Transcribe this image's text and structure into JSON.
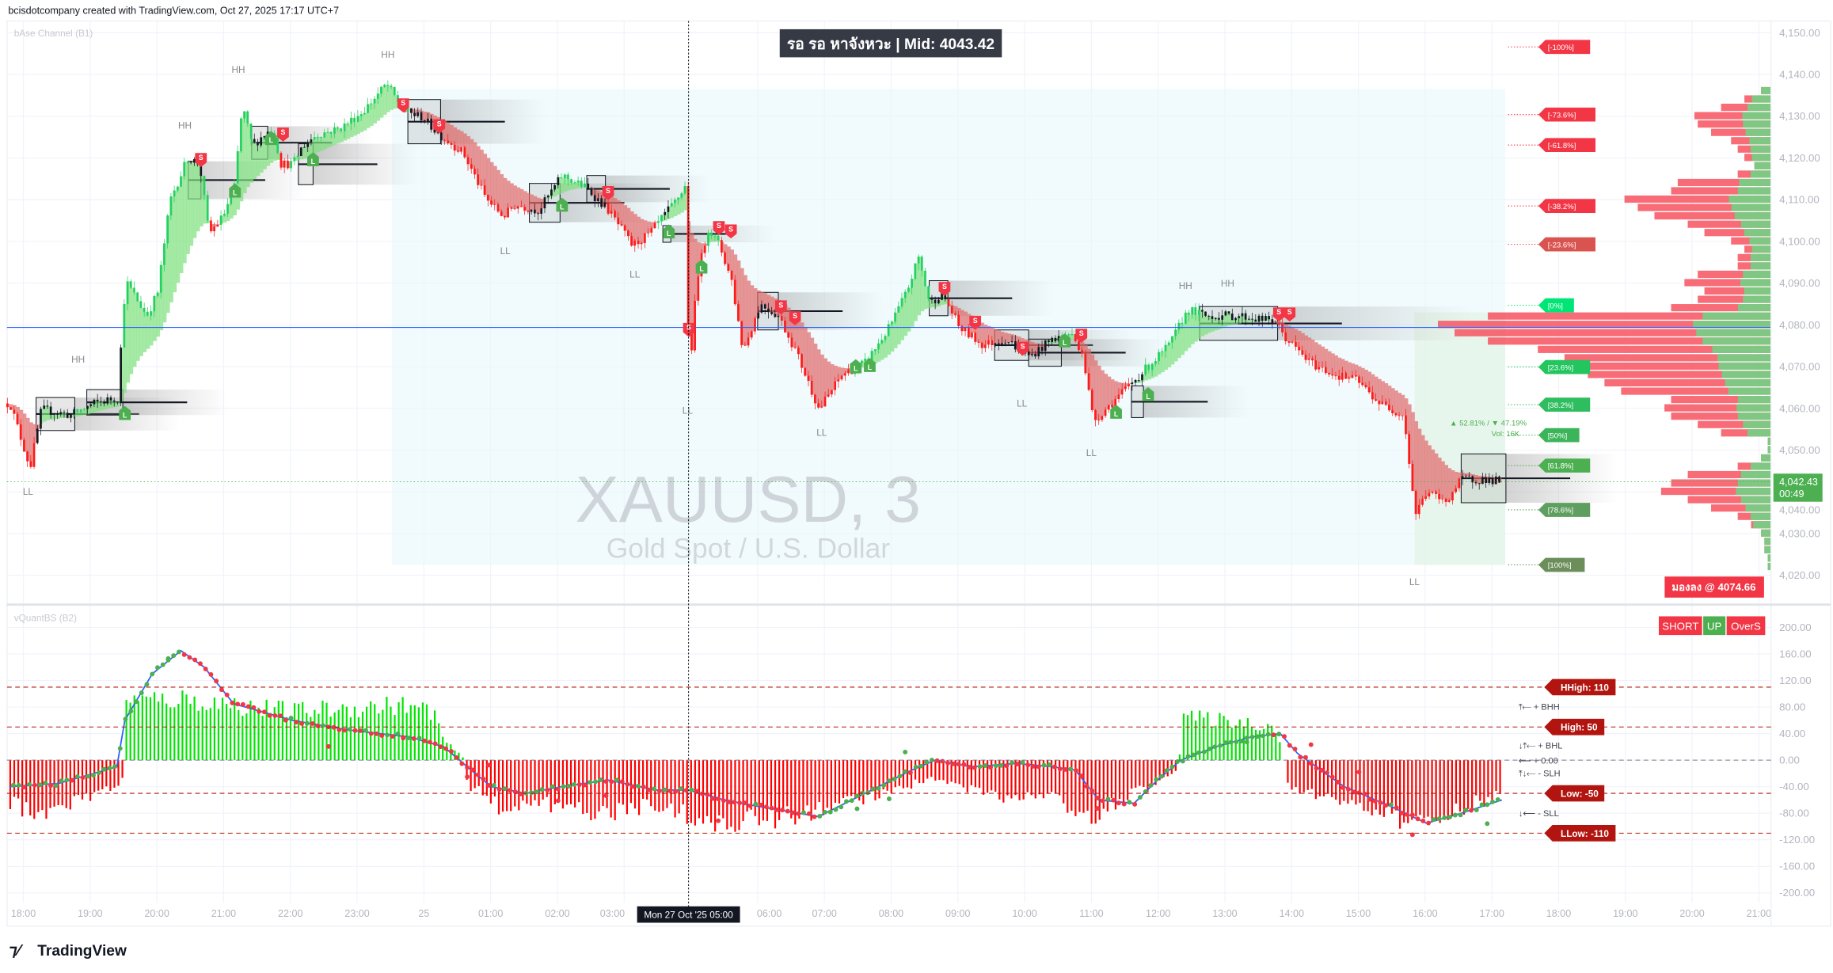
{
  "header": {
    "attribution": "bcisdotcompany created with TradingView.com, Oct 27, 2025 17:17 UTC+7"
  },
  "main_pane": {
    "indicator_label": "bAse Channel (B1)",
    "status_box": "รอ รอ หาจังหวะ | Mid: 4043.42",
    "watermark_symbol": "XAUUSD, 3",
    "watermark_name": "Gold Spot / U.S. Dollar",
    "ratio_text": "▲ 52.81% / ▼ 47.19%",
    "volume_text": "Vol: 16K",
    "current_price": "4,042.43",
    "countdown": "00:49",
    "bias_box": "มองลง @ 4074.66"
  },
  "indicator_pane": {
    "label": "vQuantBS (B2)",
    "badges": [
      {
        "text": "SHORT",
        "color": "#f23645"
      },
      {
        "text": "UP",
        "color": "#4caf50"
      },
      {
        "text": "OverS",
        "color": "#f23645"
      }
    ],
    "levels": [
      {
        "text": "HHigh: 110",
        "value": 110
      },
      {
        "text": "High: 50",
        "value": 50
      },
      {
        "text": "Low: -50",
        "value": -50
      },
      {
        "text": "LLow: -110",
        "value": -110
      }
    ],
    "notes": [
      {
        "text": "⤒⟵ + BHH",
        "value": 81
      },
      {
        "text": "↓⤒⟵ + BHL",
        "value": 23
      },
      {
        "text": "⟵ + 0.00",
        "value": 0
      },
      {
        "text": "⤒↓⟵ - SLH",
        "value": -19
      },
      {
        "text": "↓⟵ - SLL",
        "value": -79
      }
    ]
  },
  "crosshair": {
    "label": "Mon 27 Oct '25   05:00",
    "hour_index": 9.97
  },
  "branding": {
    "logo_text": "TradingView"
  },
  "colors": {
    "up": "#22d160",
    "down": "#ff1a1a",
    "fib_neg": "#f23645",
    "fib_pos": "#22c55e",
    "level": "#b2150f",
    "blue_line": "#2962ff"
  },
  "chart_data": [
    {
      "type": "candlestick",
      "title": "XAUUSD, 3",
      "ylim": [
        4020,
        4150
      ],
      "y_ticks": [
        4150,
        4140,
        4130,
        4120,
        4110,
        4100,
        4090,
        4080,
        4070,
        4060,
        4050,
        4040,
        4030,
        4020
      ],
      "x_tick_labels": [
        "18:00",
        "19:00",
        "20:00",
        "21:00",
        "22:00",
        "23:00",
        "25",
        "01:00",
        "02:00",
        "03:00",
        "06:00",
        "07:00",
        "08:00",
        "09:00",
        "10:00",
        "11:00",
        "12:00",
        "13:00",
        "14:00",
        "15:00",
        "16:00",
        "17:00",
        "18:00",
        "19:00",
        "20:00",
        "21:00"
      ],
      "grid": true,
      "close_path": [
        [
          -0.21,
          4061.2
        ],
        [
          0.09,
          4045.8
        ],
        [
          0.26,
          4059.8
        ],
        [
          0.7,
          4058.4
        ],
        [
          1.05,
          4061.2
        ],
        [
          1.4,
          4062.6
        ],
        [
          1.52,
          4090.6
        ],
        [
          1.84,
          4082.2
        ],
        [
          2.0,
          4087.8
        ],
        [
          2.19,
          4110
        ],
        [
          2.45,
          4120
        ],
        [
          2.63,
          4118.6
        ],
        [
          2.77,
          4101.8
        ],
        [
          2.98,
          4106
        ],
        [
          3.15,
          4113
        ],
        [
          3.27,
          4132.6
        ],
        [
          3.42,
          4122.8
        ],
        [
          3.59,
          4125.6
        ],
        [
          3.73,
          4127
        ],
        [
          3.85,
          4118.6
        ],
        [
          4.03,
          4118.6
        ],
        [
          4.17,
          4122.8
        ],
        [
          4.38,
          4125.6
        ],
        [
          4.73,
          4127
        ],
        [
          5.08,
          4131.2
        ],
        [
          5.43,
          4137.7
        ],
        [
          5.69,
          4131.2
        ],
        [
          5.96,
          4129.8
        ],
        [
          6.22,
          4125.6
        ],
        [
          6.57,
          4121.4
        ],
        [
          6.92,
          4110.2
        ],
        [
          7.18,
          4106
        ],
        [
          7.36,
          4108.8
        ],
        [
          7.71,
          4107.4
        ],
        [
          8.06,
          4115.8
        ],
        [
          8.41,
          4113
        ],
        [
          8.76,
          4107.4
        ],
        [
          9.11,
          4099
        ],
        [
          9.37,
          4101.8
        ],
        [
          9.72,
          4108.8
        ],
        [
          9.9,
          4113
        ],
        [
          9.97,
          4065.4
        ],
        [
          10.07,
          4090.6
        ],
        [
          10.25,
          4103.2
        ],
        [
          10.42,
          4099
        ],
        [
          10.6,
          4090.6
        ],
        [
          10.77,
          4073.8
        ],
        [
          11.03,
          4085
        ],
        [
          11.3,
          4082.2
        ],
        [
          11.56,
          4073.8
        ],
        [
          11.91,
          4059.8
        ],
        [
          12.26,
          4068.2
        ],
        [
          12.61,
          4071
        ],
        [
          12.96,
          4079.4
        ],
        [
          13.22,
          4087.8
        ],
        [
          13.4,
          4096.2
        ],
        [
          13.57,
          4085
        ],
        [
          13.75,
          4087.8
        ],
        [
          14.01,
          4079.4
        ],
        [
          14.36,
          4075.2
        ],
        [
          14.71,
          4076.6
        ],
        [
          15.06,
          4072.4
        ],
        [
          15.41,
          4076.6
        ],
        [
          15.67,
          4078
        ],
        [
          15.85,
          4073.8
        ],
        [
          16.02,
          4057
        ],
        [
          16.29,
          4061.2
        ],
        [
          16.55,
          4065.4
        ],
        [
          16.9,
          4071
        ],
        [
          17.16,
          4075.2
        ],
        [
          17.43,
          4083.6
        ],
        [
          17.69,
          4082.2
        ],
        [
          18.21,
          4082.2
        ],
        [
          18.74,
          4080.8
        ],
        [
          18.91,
          4076.6
        ],
        [
          19.26,
          4071
        ],
        [
          19.61,
          4068.2
        ],
        [
          19.96,
          4066.8
        ],
        [
          20.31,
          4061.2
        ],
        [
          20.67,
          4058.4
        ],
        [
          20.84,
          4034.6
        ],
        [
          21.02,
          4040.2
        ],
        [
          21.28,
          4037.4
        ],
        [
          21.54,
          4043
        ],
        [
          21.89,
          4043
        ],
        [
          22.15,
          4042.43
        ]
      ],
      "blue_line_price": 4079.4,
      "current_price": 4042.43,
      "signals_short": [
        [
          2.66,
          4119.5
        ],
        [
          3.89,
          4125.6
        ],
        [
          5.69,
          4132.6
        ],
        [
          6.23,
          4127.6
        ],
        [
          8.76,
          4111.6
        ],
        [
          10.42,
          4103.2
        ],
        [
          10.6,
          4102.4
        ],
        [
          9.97,
          4078.8
        ],
        [
          11.35,
          4084.2
        ],
        [
          11.56,
          4081.6
        ],
        [
          13.8,
          4088.6
        ],
        [
          14.26,
          4080.5
        ],
        [
          14.97,
          4074.3
        ],
        [
          15.85,
          4077.4
        ],
        [
          18.81,
          4082.5
        ],
        [
          18.97,
          4082.5
        ]
      ],
      "signals_long": [
        [
          1.52,
          4058.9
        ],
        [
          3.17,
          4112.2
        ],
        [
          3.71,
          4124.8
        ],
        [
          4.34,
          4119.7
        ],
        [
          8.07,
          4108.8
        ],
        [
          9.67,
          4102.4
        ],
        [
          10.16,
          4094
        ],
        [
          12.47,
          4070.1
        ],
        [
          12.68,
          4070.4
        ],
        [
          15.6,
          4076.3
        ],
        [
          16.37,
          4059.2
        ],
        [
          16.85,
          4063.4
        ]
      ],
      "signal_text": {
        "short": "S",
        "long": "L"
      },
      "swing_labels": [
        [
          "HH",
          0.82,
          4071
        ],
        [
          "HH",
          2.42,
          4127
        ],
        [
          "HH",
          3.22,
          4140.4
        ],
        [
          "HH",
          5.46,
          4144
        ],
        [
          "HH",
          17.41,
          4088.6
        ],
        [
          "HH",
          18.04,
          4089.2
        ],
        [
          "LL",
          0.07,
          4039.3
        ],
        [
          "LL",
          7.22,
          4097
        ],
        [
          "LL",
          9.16,
          4091.4
        ],
        [
          "LL",
          9.95,
          4058.7
        ],
        [
          "LL",
          11.96,
          4053.4
        ],
        [
          "LL",
          14.96,
          4060.4
        ],
        [
          "LL",
          16.0,
          4048.6
        ],
        [
          "LL",
          20.84,
          4017.7
        ]
      ],
      "zones": [
        [
          0.19,
          4062.6,
          0.77,
          4054.7
        ],
        [
          0.95,
          4064.5,
          1.49,
          4058.4
        ],
        [
          2.47,
          4119.2,
          2.66,
          4110.2
        ],
        [
          3.42,
          4127.6,
          3.66,
          4119.7
        ],
        [
          4.12,
          4123.4,
          4.34,
          4113.6
        ],
        [
          5.76,
          4134.0,
          6.25,
          4123.4
        ],
        [
          7.58,
          4113.9,
          8.04,
          4104.6
        ],
        [
          8.44,
          4115.8,
          8.72,
          4109.4
        ],
        [
          9.58,
          4103.8,
          9.7,
          4099.8
        ],
        [
          11.0,
          4087.8,
          11.31,
          4078.8
        ],
        [
          13.57,
          4090.6,
          13.85,
          4082.2
        ],
        [
          14.55,
          4078.8,
          15.06,
          4071.5
        ],
        [
          15.06,
          4076.6,
          15.55,
          4070.1
        ],
        [
          16.6,
          4065.4,
          16.78,
          4057.8
        ],
        [
          17.62,
          4084.4,
          18.79,
          4076.3
        ],
        [
          21.54,
          4049.1,
          22.21,
          4037.4
        ]
      ],
      "range_box": [
        5.52,
        4136.5,
        22.2,
        4022.5
      ],
      "range_box_green_from": 20.84,
      "fib_levels": [
        [
          "[-100%]",
          4146.6
        ],
        [
          "[-73.6%]",
          4130.4
        ],
        [
          "[-61.8%]",
          4123.1
        ],
        [
          "[-38.2%]",
          4108.5
        ],
        [
          "[-23.6%]",
          4099.3
        ],
        [
          "[0%]",
          4084.7
        ],
        [
          "[23.6%]",
          4069.9
        ],
        [
          "[38.2%]",
          4060.9
        ],
        [
          "[50%]",
          4053.6
        ],
        [
          "[61.8%]",
          4046.3
        ],
        [
          "[78.6%]",
          4035.7
        ],
        [
          "[100%]",
          4022.5
        ]
      ],
      "volume_profile": {
        "prices": [
          4022,
          4024,
          4026,
          4028,
          4030,
          4032,
          4034,
          4036,
          4038,
          4040,
          4042,
          4044,
          4046,
          4048,
          4050,
          4052,
          4054,
          4056,
          4058,
          4060,
          4062,
          4064,
          4066,
          4068,
          4070,
          4072,
          4074,
          4076,
          4078,
          4080,
          4082,
          4084,
          4086,
          4088,
          4090,
          4092,
          4094,
          4096,
          4098,
          4100,
          4102,
          4104,
          4106,
          4108,
          4110,
          4112,
          4114,
          4116,
          4118,
          4120,
          4122,
          4124,
          4126,
          4128,
          4130,
          4132,
          4134,
          4136
        ],
        "total": [
          0.01,
          0.01,
          0.02,
          0.02,
          0.03,
          0.06,
          0.1,
          0.18,
          0.25,
          0.33,
          0.3,
          0.25,
          0.1,
          0.03,
          0.01,
          0.01,
          0.15,
          0.22,
          0.3,
          0.32,
          0.3,
          0.45,
          0.5,
          0.55,
          0.6,
          0.62,
          0.7,
          0.85,
          0.95,
          1.0,
          0.85,
          0.3,
          0.22,
          0.2,
          0.26,
          0.22,
          0.1,
          0.1,
          0.08,
          0.12,
          0.2,
          0.25,
          0.35,
          0.4,
          0.44,
          0.3,
          0.28,
          0.1,
          0.05,
          0.08,
          0.1,
          0.12,
          0.18,
          0.22,
          0.23,
          0.15,
          0.08,
          0.03
        ]
      }
    },
    {
      "type": "bar+scatter",
      "title": "vQuantBS (B2)",
      "ylim": [
        -200,
        200
      ],
      "y_ticks": [
        200,
        160,
        120,
        80,
        40,
        0,
        -40,
        -80,
        -120,
        -160,
        -200
      ],
      "histogram": [
        [
          -0.21,
          -70
        ],
        [
          0.18,
          -90
        ],
        [
          0.7,
          -70
        ],
        [
          1.4,
          -40
        ],
        [
          1.51,
          -30
        ],
        [
          1.52,
          95
        ],
        [
          2.28,
          100
        ],
        [
          3.15,
          90
        ],
        [
          4.03,
          80
        ],
        [
          4.9,
          85
        ],
        [
          5.6,
          90
        ],
        [
          6.13,
          80
        ],
        [
          6.3,
          30
        ],
        [
          6.57,
          5
        ],
        [
          6.65,
          -40
        ],
        [
          7.18,
          -80
        ],
        [
          8.06,
          -70
        ],
        [
          8.76,
          -90
        ],
        [
          9.46,
          -70
        ],
        [
          10.16,
          -100
        ],
        [
          10.86,
          -100
        ],
        [
          11.56,
          -90
        ],
        [
          12.26,
          -70
        ],
        [
          12.96,
          -50
        ],
        [
          13.66,
          -30
        ],
        [
          14.54,
          -60
        ],
        [
          15.41,
          -55
        ],
        [
          15.94,
          -100
        ],
        [
          16.46,
          -60
        ],
        [
          17.16,
          -30
        ],
        [
          17.3,
          -10
        ],
        [
          17.34,
          70
        ],
        [
          18.04,
          65
        ],
        [
          18.74,
          55
        ],
        [
          18.86,
          10
        ],
        [
          18.91,
          -40
        ],
        [
          19.79,
          -70
        ],
        [
          20.67,
          -100
        ],
        [
          21.37,
          -90
        ],
        [
          22.15,
          -50
        ]
      ],
      "signal_line": [
        [
          -0.21,
          -40
        ],
        [
          0.53,
          -35
        ],
        [
          1.4,
          -10
        ],
        [
          1.52,
          60
        ],
        [
          1.93,
          130
        ],
        [
          2.36,
          165
        ],
        [
          2.71,
          140
        ],
        [
          3.15,
          85
        ],
        [
          4.03,
          60
        ],
        [
          4.9,
          45
        ],
        [
          5.78,
          35
        ],
        [
          6.3,
          20
        ],
        [
          6.65,
          -10
        ],
        [
          7.01,
          -40
        ],
        [
          7.53,
          -50
        ],
        [
          8.06,
          -40
        ],
        [
          8.76,
          -30
        ],
        [
          9.46,
          -45
        ],
        [
          9.96,
          -45
        ],
        [
          10.51,
          -60
        ],
        [
          11.03,
          -70
        ],
        [
          11.91,
          -85
        ],
        [
          12.61,
          -50
        ],
        [
          13.31,
          -15
        ],
        [
          13.66,
          0
        ],
        [
          14.19,
          -10
        ],
        [
          14.89,
          -5
        ],
        [
          15.41,
          -10
        ],
        [
          15.76,
          -15
        ],
        [
          16.11,
          -60
        ],
        [
          16.64,
          -65
        ],
        [
          16.99,
          -30
        ],
        [
          17.34,
          0
        ],
        [
          17.86,
          20
        ],
        [
          18.39,
          35
        ],
        [
          18.83,
          40
        ],
        [
          19.09,
          10
        ],
        [
          19.79,
          -40
        ],
        [
          20.49,
          -70
        ],
        [
          21.02,
          -95
        ],
        [
          21.54,
          -80
        ],
        [
          22.15,
          -60
        ]
      ]
    }
  ]
}
